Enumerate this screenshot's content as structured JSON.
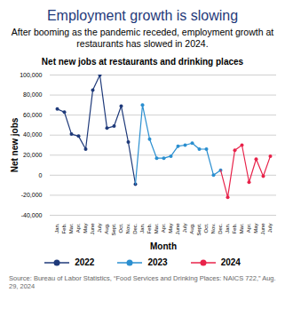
{
  "chart_data": {
    "type": "line",
    "title": "Employment growth is slowing",
    "subtitle": "After booming as the pandemic receded, employment growth at restaurants has slowed in 2024.",
    "plot_title": "Net new jobs at restaurants and drinking places",
    "x_label": "Month",
    "y_label": "Net new jobs",
    "source": "Source: Bureau of Labor Statistics, “Food Services and Drinking Places: NAICS 722,” Aug. 29, 2024",
    "categories": [
      "Jan.",
      "Feb.",
      "Mar.",
      "Apr.",
      "May",
      "June",
      "July",
      "Aug.",
      "Sept.",
      "Oct.",
      "Nov.",
      "Dec.",
      "Jan.",
      "Feb.",
      "Mar.",
      "Apr.",
      "May",
      "June",
      "July",
      "Aug.",
      "Sept.",
      "Oct.",
      "Nov.",
      "Dec.",
      "Jan.",
      "Feb.",
      "Mar.",
      "Apr.",
      "May",
      "June",
      "July"
    ],
    "series": [
      {
        "name": "2022",
        "color": "#1f3a7a",
        "marker": "circle",
        "values": [
          66000,
          63000,
          41000,
          39000,
          26000,
          85000,
          100000,
          47000,
          49000,
          69000,
          33000,
          -9000,
          null,
          null,
          null,
          null,
          null,
          null,
          null,
          null,
          null,
          null,
          null,
          null,
          null,
          null,
          null,
          null,
          null,
          null,
          null
        ]
      },
      {
        "name": "2023",
        "color": "#2b8fd0",
        "marker": "circle",
        "values": [
          null,
          null,
          null,
          null,
          null,
          null,
          null,
          null,
          null,
          null,
          null,
          null,
          70000,
          36000,
          17000,
          17000,
          19000,
          29000,
          30000,
          32000,
          26000,
          26000,
          0,
          5000,
          null,
          null,
          null,
          null,
          null,
          null,
          null
        ]
      },
      {
        "name": "2024",
        "color": "#e8234a",
        "marker": "circle",
        "values": [
          null,
          null,
          null,
          null,
          null,
          null,
          null,
          null,
          null,
          null,
          null,
          null,
          null,
          null,
          null,
          null,
          null,
          null,
          null,
          null,
          null,
          null,
          null,
          null,
          -22000,
          25000,
          30000,
          -7000,
          16000,
          -1000,
          19000
        ]
      }
    ],
    "ylim": [
      -40000,
      100000
    ],
    "yticks": [
      {
        "value": -40000,
        "label": "-40,000"
      },
      {
        "value": -20000,
        "label": "-20,000"
      },
      0,
      {
        "value": 20000,
        "label": "20,000"
      },
      {
        "value": 40000,
        "label": "40,000"
      },
      {
        "value": 60000,
        "label": "60,000"
      },
      {
        "value": 80000,
        "label": "80,000"
      },
      {
        "value": 100000,
        "label": "100,000"
      }
    ],
    "grid": true,
    "legend": "bottom"
  }
}
